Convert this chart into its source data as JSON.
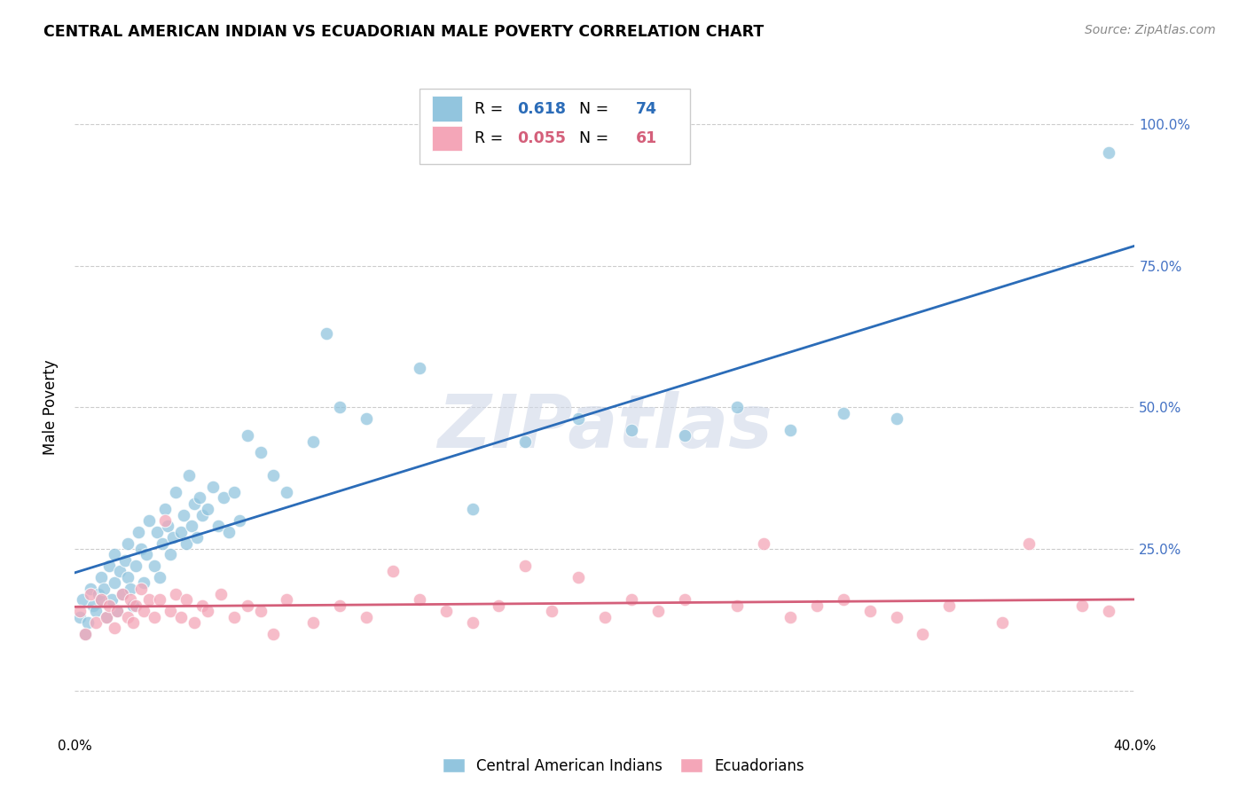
{
  "title": "CENTRAL AMERICAN INDIAN VS ECUADORIAN MALE POVERTY CORRELATION CHART",
  "source": "Source: ZipAtlas.com",
  "ylabel": "Male Poverty",
  "yticks": [
    0.0,
    0.25,
    0.5,
    0.75,
    1.0
  ],
  "ytick_labels": [
    "",
    "25.0%",
    "50.0%",
    "75.0%",
    "100.0%"
  ],
  "xmin": 0.0,
  "xmax": 0.4,
  "ymin": -0.08,
  "ymax": 1.08,
  "blue_R": "0.618",
  "blue_N": "74",
  "pink_R": "0.055",
  "pink_N": "61",
  "blue_color": "#92c5de",
  "pink_color": "#f4a6b8",
  "blue_line_color": "#2b6cb8",
  "pink_line_color": "#d45f7a",
  "watermark_text": "ZIPatlas",
  "legend_label_blue": "Central American Indians",
  "legend_label_pink": "Ecuadorians",
  "blue_x": [
    0.002,
    0.003,
    0.004,
    0.005,
    0.006,
    0.007,
    0.008,
    0.009,
    0.01,
    0.01,
    0.011,
    0.012,
    0.013,
    0.014,
    0.015,
    0.015,
    0.016,
    0.017,
    0.018,
    0.019,
    0.02,
    0.02,
    0.021,
    0.022,
    0.023,
    0.024,
    0.025,
    0.026,
    0.027,
    0.028,
    0.03,
    0.031,
    0.032,
    0.033,
    0.034,
    0.035,
    0.036,
    0.037,
    0.038,
    0.04,
    0.041,
    0.042,
    0.043,
    0.044,
    0.045,
    0.046,
    0.047,
    0.048,
    0.05,
    0.052,
    0.054,
    0.056,
    0.058,
    0.06,
    0.062,
    0.065,
    0.07,
    0.075,
    0.08,
    0.09,
    0.095,
    0.1,
    0.11,
    0.13,
    0.15,
    0.17,
    0.19,
    0.21,
    0.23,
    0.25,
    0.27,
    0.29,
    0.31,
    0.39
  ],
  "blue_y": [
    0.13,
    0.16,
    0.1,
    0.12,
    0.18,
    0.15,
    0.14,
    0.17,
    0.16,
    0.2,
    0.18,
    0.13,
    0.22,
    0.16,
    0.19,
    0.24,
    0.14,
    0.21,
    0.17,
    0.23,
    0.2,
    0.26,
    0.18,
    0.15,
    0.22,
    0.28,
    0.25,
    0.19,
    0.24,
    0.3,
    0.22,
    0.28,
    0.2,
    0.26,
    0.32,
    0.29,
    0.24,
    0.27,
    0.35,
    0.28,
    0.31,
    0.26,
    0.38,
    0.29,
    0.33,
    0.27,
    0.34,
    0.31,
    0.32,
    0.36,
    0.29,
    0.34,
    0.28,
    0.35,
    0.3,
    0.45,
    0.42,
    0.38,
    0.35,
    0.44,
    0.63,
    0.5,
    0.48,
    0.57,
    0.32,
    0.44,
    0.48,
    0.46,
    0.45,
    0.5,
    0.46,
    0.49,
    0.48,
    0.95
  ],
  "pink_x": [
    0.002,
    0.004,
    0.006,
    0.008,
    0.01,
    0.012,
    0.013,
    0.015,
    0.016,
    0.018,
    0.02,
    0.021,
    0.022,
    0.023,
    0.025,
    0.026,
    0.028,
    0.03,
    0.032,
    0.034,
    0.036,
    0.038,
    0.04,
    0.042,
    0.045,
    0.048,
    0.05,
    0.055,
    0.06,
    0.065,
    0.07,
    0.075,
    0.08,
    0.09,
    0.1,
    0.11,
    0.12,
    0.13,
    0.14,
    0.15,
    0.16,
    0.17,
    0.18,
    0.19,
    0.2,
    0.21,
    0.22,
    0.23,
    0.25,
    0.26,
    0.27,
    0.28,
    0.29,
    0.3,
    0.31,
    0.32,
    0.33,
    0.35,
    0.36,
    0.38,
    0.39
  ],
  "pink_y": [
    0.14,
    0.1,
    0.17,
    0.12,
    0.16,
    0.13,
    0.15,
    0.11,
    0.14,
    0.17,
    0.13,
    0.16,
    0.12,
    0.15,
    0.18,
    0.14,
    0.16,
    0.13,
    0.16,
    0.3,
    0.14,
    0.17,
    0.13,
    0.16,
    0.12,
    0.15,
    0.14,
    0.17,
    0.13,
    0.15,
    0.14,
    0.1,
    0.16,
    0.12,
    0.15,
    0.13,
    0.21,
    0.16,
    0.14,
    0.12,
    0.15,
    0.22,
    0.14,
    0.2,
    0.13,
    0.16,
    0.14,
    0.16,
    0.15,
    0.26,
    0.13,
    0.15,
    0.16,
    0.14,
    0.13,
    0.1,
    0.15,
    0.12,
    0.26,
    0.15,
    0.14
  ]
}
